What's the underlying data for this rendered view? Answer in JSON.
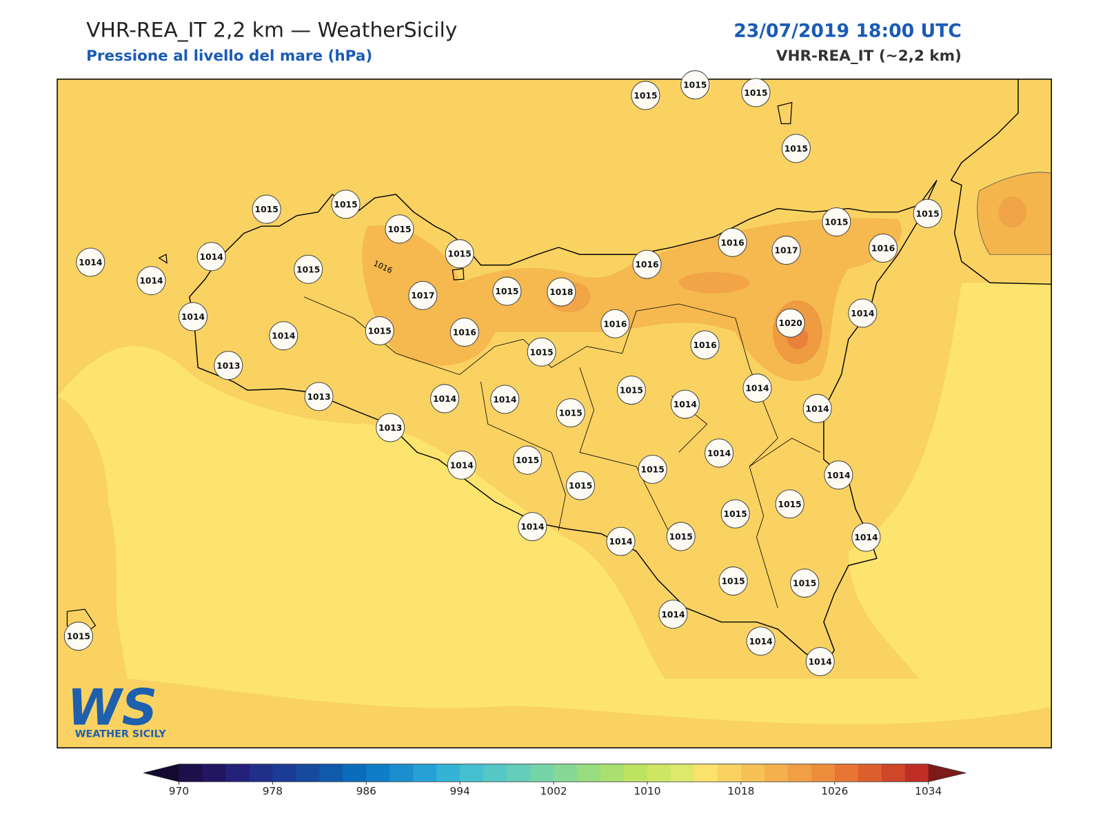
{
  "header": {
    "title": "VHR-REA_IT 2,2 km — WeatherSicily",
    "subtitle": "Pressione al livello del mare (hPa)",
    "date": "23/07/2019 18:00 UTC",
    "model": "VHR-REA_IT (~2,2 km)"
  },
  "map": {
    "stations": [
      1015,
      1015,
      1015,
      1015,
      1015,
      1015,
      1015,
      1014,
      1014,
      1015,
      1015,
      1014,
      1014,
      1017,
      1015,
      1018,
      1016,
      1016,
      1017,
      1015,
      1016,
      1015,
      1014,
      1015,
      1016,
      1016,
      1015,
      1020,
      1016,
      1014,
      1013,
      1013,
      1014,
      1014,
      1015,
      1015,
      1014,
      1014,
      1014,
      1013,
      1014,
      1015,
      1015,
      1015,
      1014,
      1014,
      1015,
      1015,
      1014,
      1014,
      1015,
      1014,
      1015,
      1015,
      1014,
      1014,
      1014,
      1015
    ],
    "contour_labels": [
      "1016"
    ]
  },
  "colorbar": {
    "ticks": [
      970,
      978,
      986,
      994,
      1002,
      1010,
      1018,
      1026,
      1034
    ],
    "colors": [
      "#1d0f4a",
      "#221660",
      "#23217a",
      "#1f2f8a",
      "#1a3c97",
      "#154a9f",
      "#105aac",
      "#0c6cbc",
      "#0f7ec8",
      "#1b8ecf",
      "#26a0d5",
      "#34b3d6",
      "#45c0d0",
      "#56c7c7",
      "#65cdb9",
      "#75d3a8",
      "#86d894",
      "#98dc80",
      "#aae06e",
      "#bde460",
      "#cee763",
      "#dce96b",
      "#fae26b",
      "#f9d262",
      "#f6c256",
      "#f4b04c",
      "#f19f44",
      "#ed8d3c",
      "#e87534",
      "#dd5f2d",
      "#cf4629",
      "#bf2f26"
    ],
    "extend_colors": [
      "#130a30",
      "#7d1a1a"
    ]
  },
  "logo": {
    "mark": "WS",
    "name": "WEATHER SICILY"
  }
}
